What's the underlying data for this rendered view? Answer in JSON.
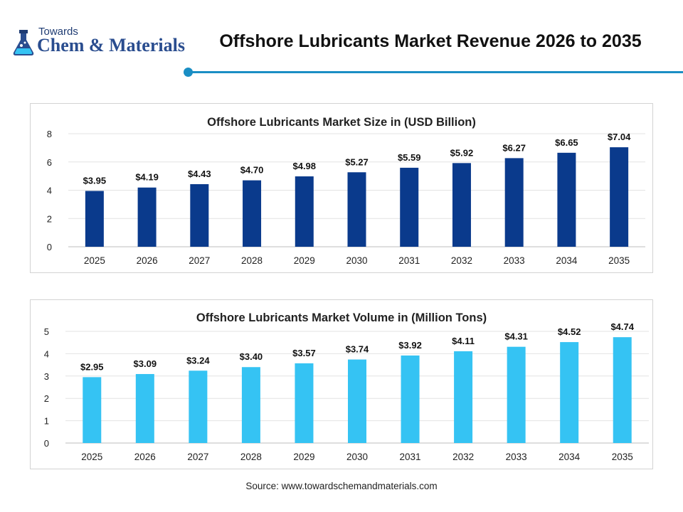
{
  "header": {
    "logo_top": "Towards",
    "logo_main": "Chem & Materials",
    "title": "Offshore Lubricants Market Revenue 2026 to 2035"
  },
  "colors": {
    "accent": "#1a8ec4",
    "series_size": "#0a3a8c",
    "series_volume": "#35c3f3",
    "logo": "#2a4d8f"
  },
  "chart_data": [
    {
      "type": "bar",
      "title": "Offshore Lubricants Market Size in (USD Billion)",
      "categories": [
        "2025",
        "2026",
        "2027",
        "2028",
        "2029",
        "2030",
        "2031",
        "2032",
        "2033",
        "2034",
        "2035"
      ],
      "values": [
        3.95,
        4.19,
        4.43,
        4.7,
        4.98,
        5.27,
        5.59,
        5.92,
        6.27,
        6.65,
        7.04
      ],
      "data_labels": [
        "$3.95",
        "$4.19",
        "$4.43",
        "$4.70",
        "$4.98",
        "$5.27",
        "$5.59",
        "$5.92",
        "$6.27",
        "$6.65",
        "$7.04"
      ],
      "ylim": [
        0,
        8
      ],
      "yticks": [
        "0",
        "2",
        "4",
        "6",
        "8"
      ],
      "grid": true,
      "xlabel": "",
      "ylabel": ""
    },
    {
      "type": "bar",
      "title": "Offshore Lubricants Market Volume in (Million Tons)",
      "categories": [
        "2025",
        "2026",
        "2027",
        "2028",
        "2029",
        "2030",
        "2031",
        "2032",
        "2033",
        "2034",
        "2035"
      ],
      "values": [
        2.95,
        3.09,
        3.24,
        3.4,
        3.57,
        3.74,
        3.92,
        4.11,
        4.31,
        4.52,
        4.74
      ],
      "data_labels": [
        "$2.95",
        "$3.09",
        "$3.24",
        "$3.40",
        "$3.57",
        "$3.74",
        "$3.92",
        "$4.11",
        "$4.31",
        "$4.52",
        "$4.74"
      ],
      "ylim": [
        0,
        5
      ],
      "yticks": [
        "0",
        "1",
        "2",
        "3",
        "4",
        "5"
      ],
      "grid": true,
      "xlabel": "",
      "ylabel": ""
    }
  ],
  "source": "Source: www.towardschemandmaterials.com"
}
